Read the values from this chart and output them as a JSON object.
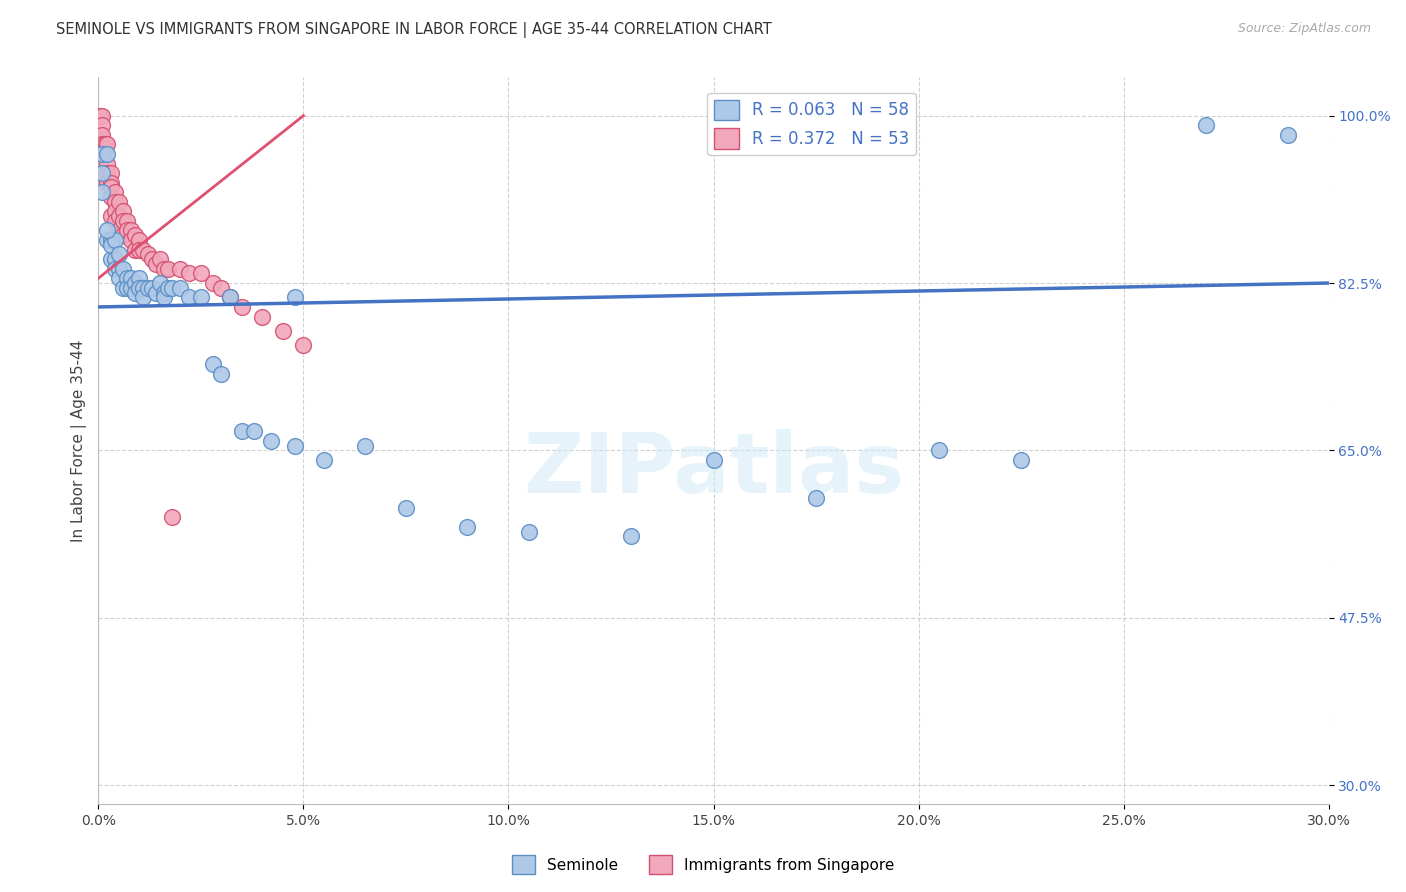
{
  "title": "SEMINOLE VS IMMIGRANTS FROM SINGAPORE IN LABOR FORCE | AGE 35-44 CORRELATION CHART",
  "source": "Source: ZipAtlas.com",
  "ylabel": "In Labor Force | Age 35-44",
  "xlim": [
    0.0,
    0.3
  ],
  "ylim": [
    0.28,
    1.04
  ],
  "xtick_vals": [
    0.0,
    0.05,
    0.1,
    0.15,
    0.2,
    0.25,
    0.3
  ],
  "xtick_labels": [
    "0.0%",
    "5.0%",
    "10.0%",
    "15.0%",
    "20.0%",
    "25.0%",
    "30.0%"
  ],
  "ytick_vals": [
    0.3,
    0.475,
    0.65,
    0.825,
    1.0
  ],
  "ytick_labels": [
    "30.0%",
    "47.5%",
    "65.0%",
    "82.5%",
    "100.0%"
  ],
  "seminole_color": "#aec8e8",
  "singapore_color": "#f2a8bc",
  "seminole_edge_color": "#5b8ec4",
  "singapore_edge_color": "#d45070",
  "seminole_line_color": "#4472C4",
  "singapore_line_color": "#e05070",
  "R_seminole": "0.063",
  "N_seminole": "58",
  "R_singapore": "0.372",
  "N_singapore": "53",
  "legend_seminole_label": "Seminole",
  "legend_singapore_label": "Immigrants from Singapore",
  "watermark": "ZIPatlas",
  "blue_line_x": [
    0.0,
    0.3
  ],
  "blue_line_y": [
    0.8,
    0.825
  ],
  "pink_line_x": [
    0.0,
    0.05
  ],
  "pink_line_y": [
    0.83,
    1.0
  ],
  "seminole_x": [
    0.001,
    0.001,
    0.001,
    0.002,
    0.002,
    0.003,
    0.003,
    0.003,
    0.004,
    0.004,
    0.004,
    0.005,
    0.005,
    0.005,
    0.006,
    0.006,
    0.007,
    0.007,
    0.008,
    0.008,
    0.009,
    0.009,
    0.01,
    0.01,
    0.011,
    0.011,
    0.012,
    0.013,
    0.014,
    0.015,
    0.016,
    0.016,
    0.017,
    0.018,
    0.02,
    0.022,
    0.025,
    0.028,
    0.03,
    0.032,
    0.035,
    0.038,
    0.042,
    0.048,
    0.055,
    0.065,
    0.075,
    0.09,
    0.105,
    0.13,
    0.15,
    0.175,
    0.205,
    0.225,
    0.27,
    0.29,
    0.002,
    0.048
  ],
  "seminole_y": [
    0.96,
    0.94,
    0.92,
    0.96,
    0.87,
    0.87,
    0.85,
    0.865,
    0.87,
    0.85,
    0.84,
    0.855,
    0.84,
    0.83,
    0.84,
    0.82,
    0.83,
    0.82,
    0.83,
    0.82,
    0.825,
    0.815,
    0.83,
    0.82,
    0.82,
    0.81,
    0.82,
    0.82,
    0.815,
    0.825,
    0.815,
    0.81,
    0.82,
    0.82,
    0.82,
    0.81,
    0.81,
    0.74,
    0.73,
    0.81,
    0.67,
    0.67,
    0.66,
    0.655,
    0.64,
    0.655,
    0.59,
    0.57,
    0.565,
    0.56,
    0.64,
    0.6,
    0.65,
    0.64,
    0.99,
    0.98,
    0.88,
    0.81
  ],
  "singapore_x": [
    0.0005,
    0.0005,
    0.001,
    0.001,
    0.001,
    0.001,
    0.0015,
    0.0015,
    0.002,
    0.002,
    0.002,
    0.002,
    0.003,
    0.003,
    0.003,
    0.003,
    0.003,
    0.004,
    0.004,
    0.004,
    0.004,
    0.005,
    0.005,
    0.005,
    0.006,
    0.006,
    0.006,
    0.007,
    0.007,
    0.008,
    0.008,
    0.009,
    0.009,
    0.01,
    0.01,
    0.011,
    0.012,
    0.013,
    0.014,
    0.015,
    0.016,
    0.017,
    0.018,
    0.02,
    0.022,
    0.025,
    0.028,
    0.03,
    0.032,
    0.035,
    0.04,
    0.045,
    0.05
  ],
  "singapore_y": [
    1.0,
    0.98,
    1.0,
    0.99,
    0.98,
    0.97,
    0.97,
    0.965,
    0.97,
    0.95,
    0.94,
    0.93,
    0.94,
    0.93,
    0.925,
    0.915,
    0.895,
    0.92,
    0.91,
    0.9,
    0.89,
    0.91,
    0.895,
    0.88,
    0.9,
    0.89,
    0.875,
    0.89,
    0.88,
    0.88,
    0.87,
    0.875,
    0.86,
    0.87,
    0.86,
    0.86,
    0.855,
    0.85,
    0.845,
    0.85,
    0.84,
    0.84,
    0.58,
    0.84,
    0.835,
    0.835,
    0.825,
    0.82,
    0.81,
    0.8,
    0.79,
    0.775,
    0.76
  ]
}
